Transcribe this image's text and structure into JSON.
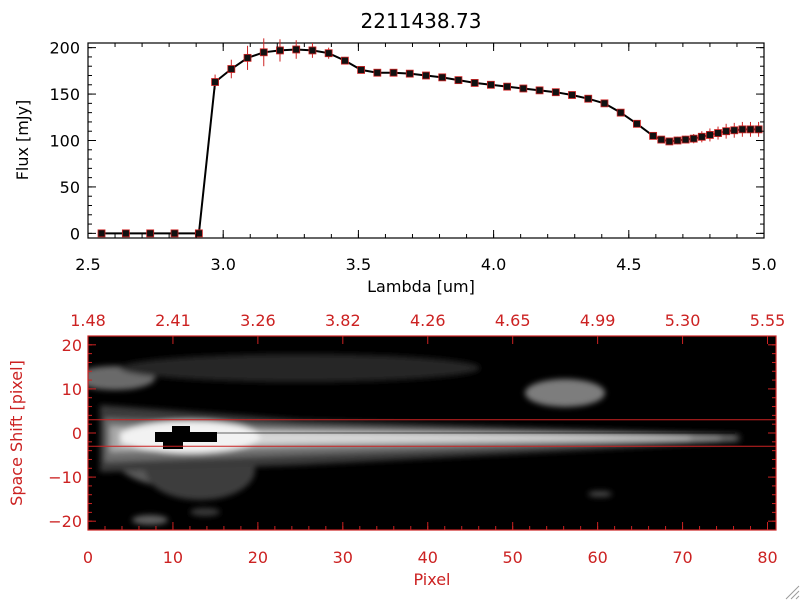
{
  "chart_data": [
    {
      "type": "line",
      "title": "2211438.73",
      "xlabel": "Lambda [um]",
      "ylabel": "Flux [mJy]",
      "xlim": [
        2.5,
        5.0
      ],
      "ylim": [
        -5,
        205
      ],
      "xticks": [
        2.5,
        3.0,
        3.5,
        4.0,
        4.5,
        5.0
      ],
      "xtick_labels": [
        "2.5",
        "3.0",
        "3.5",
        "4.0",
        "4.5",
        "5.0"
      ],
      "yticks": [
        0,
        50,
        100,
        150,
        200
      ],
      "ytick_labels": [
        "0",
        "50",
        "100",
        "150",
        "200"
      ],
      "grid": false,
      "line_color": "#000000",
      "errorbar_color": "#cc2222",
      "x": [
        2.55,
        2.64,
        2.73,
        2.82,
        2.91,
        2.97,
        3.03,
        3.09,
        3.15,
        3.21,
        3.27,
        3.33,
        3.39,
        3.45,
        3.51,
        3.57,
        3.63,
        3.69,
        3.75,
        3.81,
        3.87,
        3.93,
        3.99,
        4.05,
        4.11,
        4.17,
        4.23,
        4.29,
        4.35,
        4.41,
        4.47,
        4.53,
        4.59,
        4.62,
        4.65,
        4.68,
        4.71,
        4.74,
        4.77,
        4.8,
        4.83,
        4.86,
        4.89,
        4.92,
        4.95,
        4.98
      ],
      "y": [
        0,
        0,
        0,
        0,
        0,
        163,
        177,
        189,
        195,
        197,
        198,
        197,
        194,
        186,
        176,
        173,
        173,
        172,
        170,
        168,
        165,
        162,
        160,
        158,
        156,
        154,
        152,
        149,
        145,
        140,
        130,
        118,
        105,
        101,
        99,
        100,
        101,
        102,
        104,
        106,
        108,
        110,
        111,
        112,
        112,
        112
      ],
      "yerr": [
        0,
        0,
        0,
        0,
        0,
        8,
        10,
        13,
        15,
        12,
        10,
        8,
        6,
        4,
        3,
        3,
        3,
        3,
        3,
        3,
        3,
        3,
        3,
        3,
        3,
        3,
        3,
        3,
        3,
        3,
        3,
        3,
        3,
        3,
        3,
        4,
        4,
        5,
        6,
        7,
        7,
        8,
        8,
        8,
        8,
        8
      ]
    },
    {
      "type": "heatmap",
      "xlabel": "Pixel",
      "ylabel": "Space Shift [pixel]",
      "xlim": [
        0,
        81
      ],
      "ylim": [
        -22,
        22
      ],
      "xticks": [
        0,
        10,
        20,
        30,
        40,
        50,
        60,
        70,
        80
      ],
      "xtick_labels": [
        "0",
        "10",
        "20",
        "30",
        "40",
        "50",
        "60",
        "70",
        "80"
      ],
      "yticks": [
        -20,
        -10,
        0,
        10,
        20
      ],
      "ytick_labels": [
        "−20",
        "−10",
        "0",
        "10",
        "20"
      ],
      "top_tick_labels": [
        "1.48",
        "2.41",
        "3.26",
        "3.82",
        "4.26",
        "4.65",
        "4.99",
        "5.30",
        "5.55"
      ],
      "aperture_lines": [
        3,
        -3
      ],
      "colormap": "grayscale",
      "axis_color": "#cc2222"
    }
  ]
}
